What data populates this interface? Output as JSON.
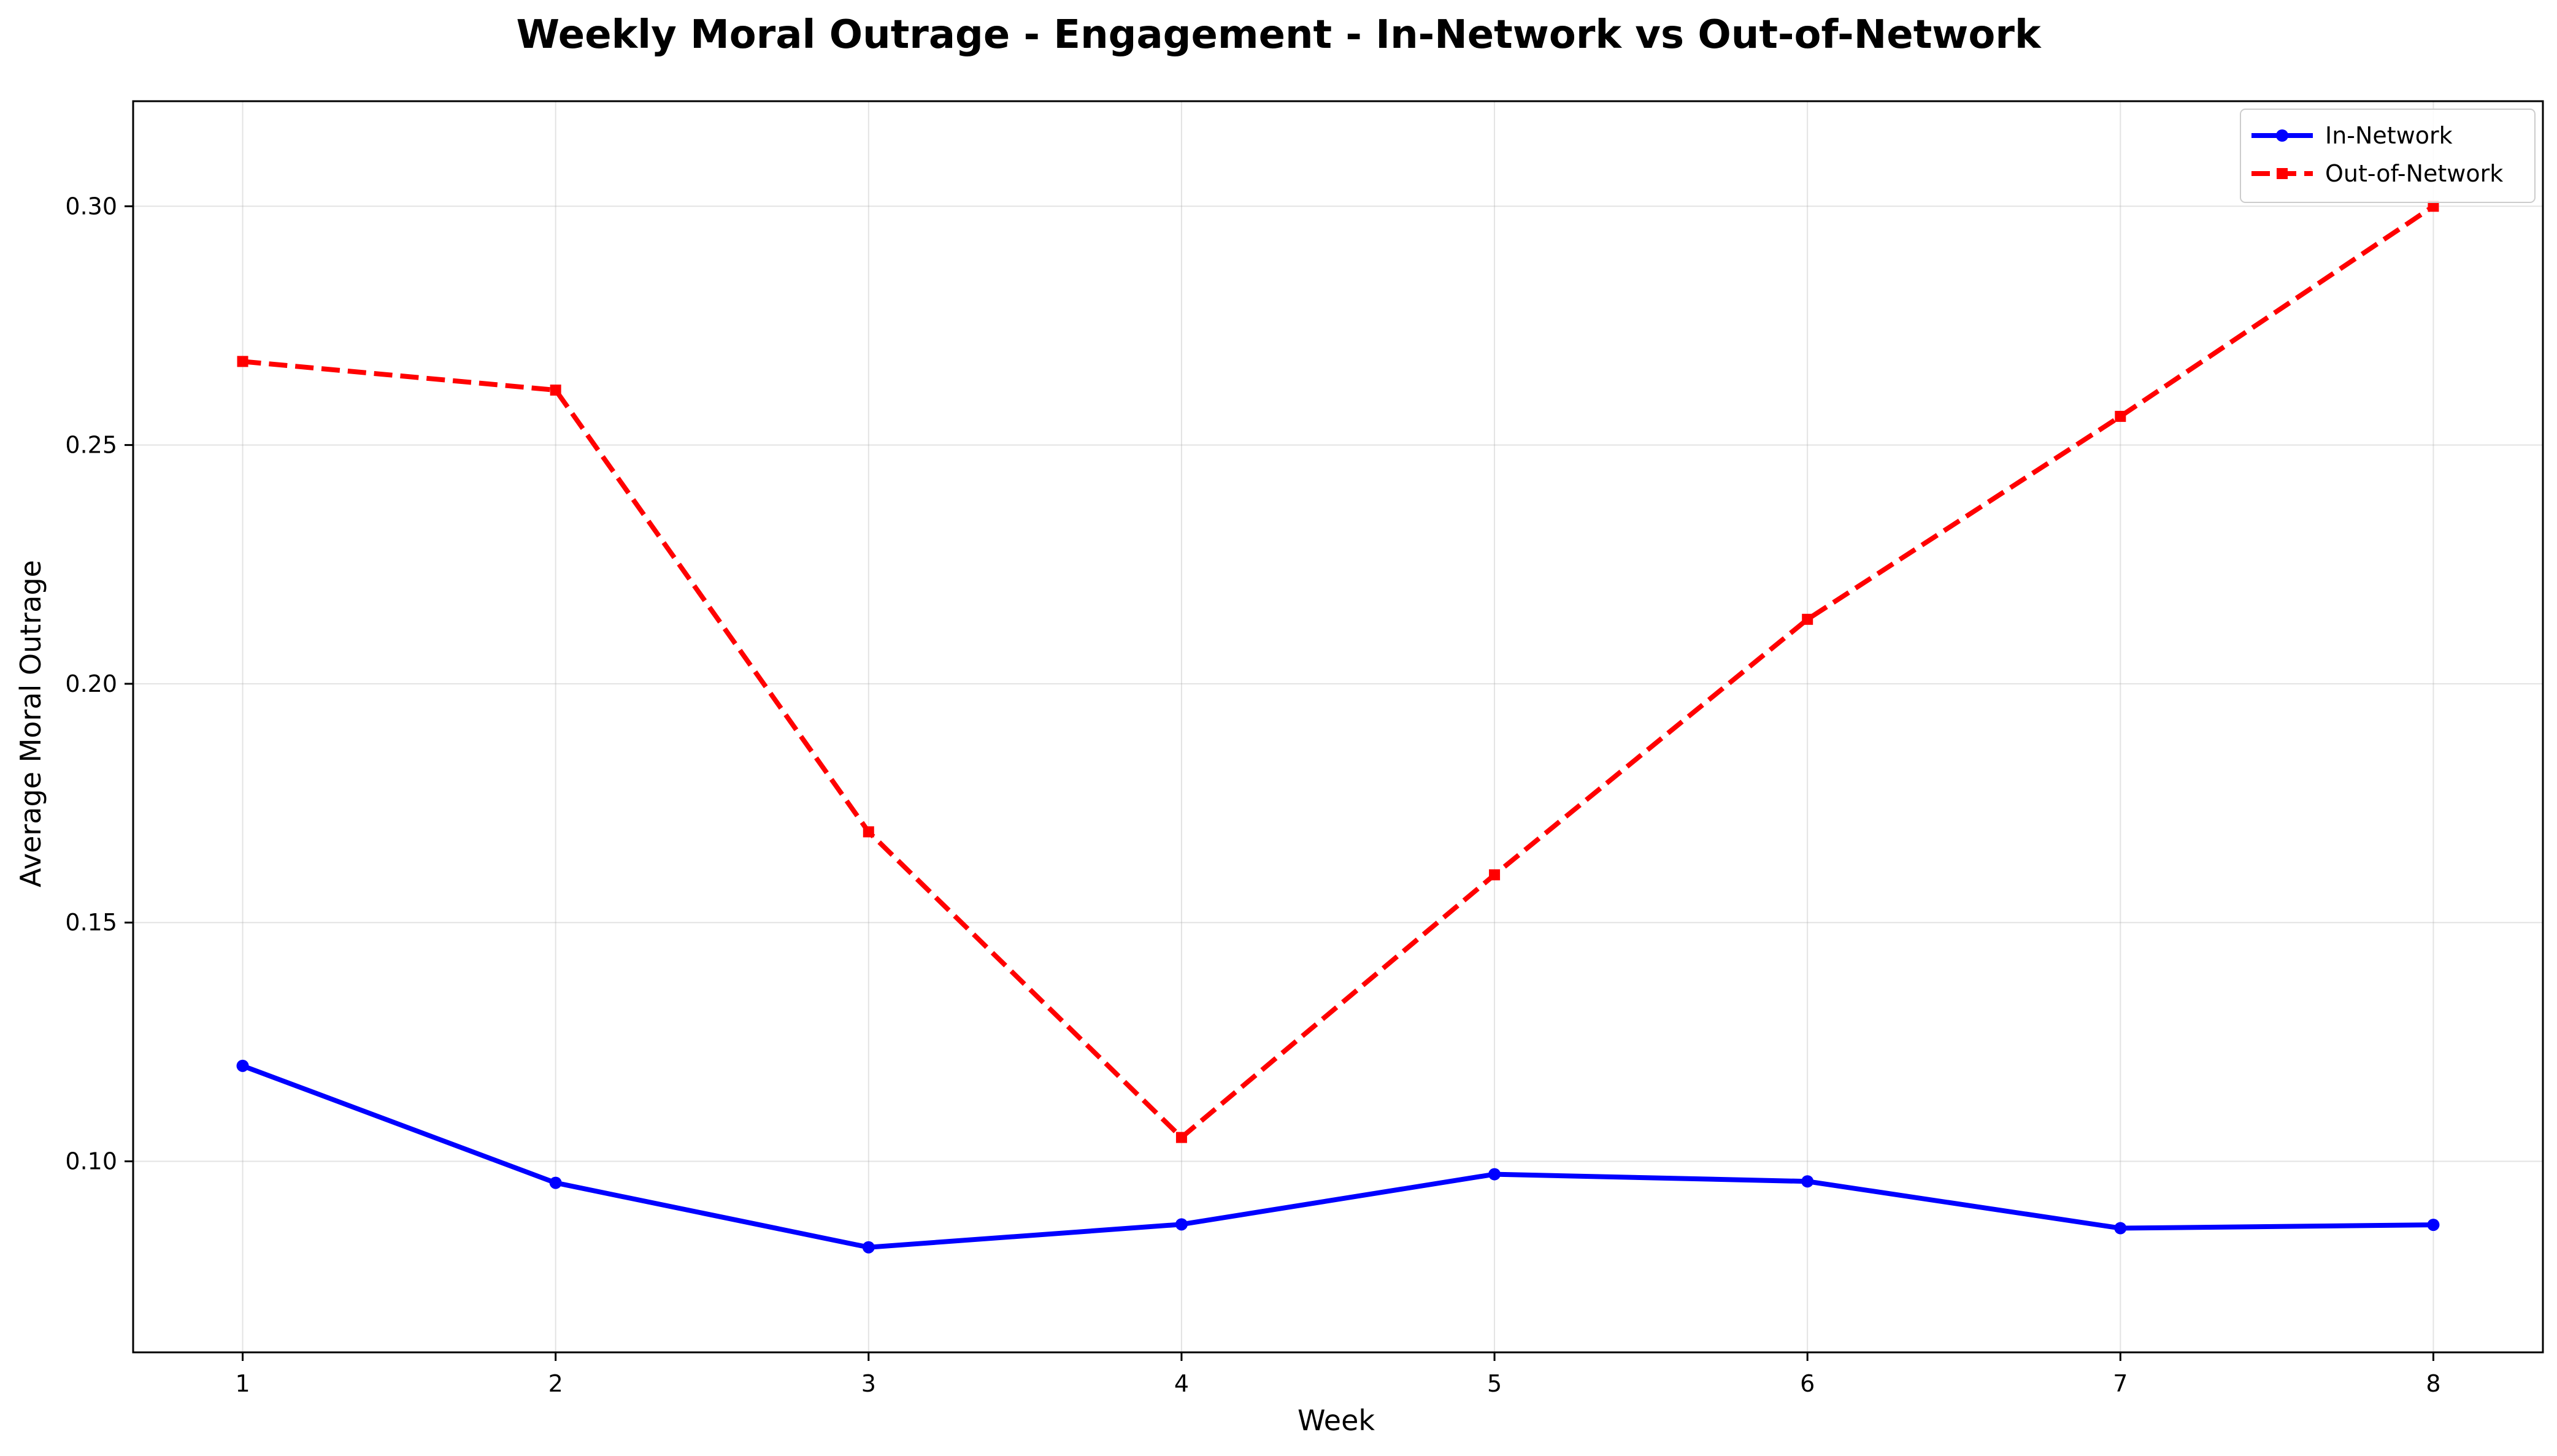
{
  "chart_data": {
    "type": "line",
    "title": "Weekly Moral Outrage - Engagement - In-Network vs Out-of-Network",
    "xlabel": "Week",
    "ylabel": "Average Moral Outrage",
    "x": [
      1,
      2,
      3,
      4,
      5,
      6,
      7,
      8
    ],
    "x_ticks": [
      "1",
      "2",
      "3",
      "4",
      "5",
      "6",
      "7",
      "8"
    ],
    "xlim": [
      0.65,
      8.35
    ],
    "ylim": [
      0.06,
      0.322
    ],
    "y_ticks": [
      "0.10",
      "0.15",
      "0.20",
      "0.25",
      "0.30"
    ],
    "grid": true,
    "legend_position": "top-right",
    "series": [
      {
        "name": "In-Network",
        "color": "#0000ff",
        "line_style": "solid",
        "marker": "circle",
        "values": [
          0.12,
          0.0955,
          0.082,
          0.0868,
          0.0973,
          0.0958,
          0.086,
          0.0867
        ]
      },
      {
        "name": "Out-of-Network",
        "color": "#ff0000",
        "line_style": "dashed",
        "marker": "square",
        "values": [
          0.2675,
          0.2615,
          0.169,
          0.105,
          0.16,
          0.2135,
          0.256,
          0.3
        ]
      }
    ]
  }
}
